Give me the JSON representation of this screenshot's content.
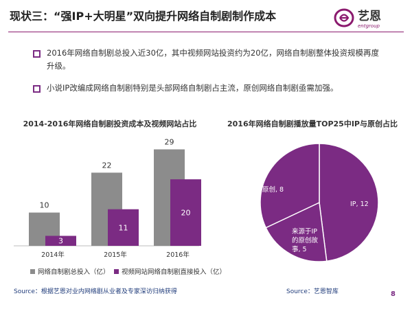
{
  "title": "现状三：“强IP+大明星”双向提升网络自制剧制作成本",
  "logo": {
    "brand_cn": "艺恩",
    "brand_en": "entgroup",
    "color": "#8b1a6e"
  },
  "bullets": [
    "2016年网络自制剧总投入近30亿，其中视频网站投资约为20亿，网络自制剧整体投资规模再度升级。",
    "小说IP改编成网络自制剧特别是头部网络自制剧占主流，原创网络自制剧亟需加强。"
  ],
  "source_left": "Source：根据艺恩对业内网络剧从业者及专家深访归纳获得",
  "source_right": "Source：艺恩智库",
  "page_number": "8",
  "colors": {
    "accent": "#7b2b83",
    "gray": "#8c8c8c",
    "pie": "#7b2b83"
  },
  "chart_data": [
    {
      "type": "bar",
      "title": "2014-2016年网络自制剧投资成本及视频网站占比",
      "categories": [
        "2014年",
        "2015年",
        "2016年"
      ],
      "series": [
        {
          "name": "网络自制剧总投入（亿）",
          "values": [
            10,
            22,
            29
          ],
          "color": "#8c8c8c"
        },
        {
          "name": "视频网站网络自制剧直接投入（亿）",
          "values": [
            3,
            11,
            20
          ],
          "color": "#7b2b83"
        }
      ],
      "ylim": [
        0,
        32
      ],
      "legend": "bottom"
    },
    {
      "type": "pie",
      "title": "2016年网络自制剧播放量TOP25中IP与原创占比",
      "slices": [
        {
          "label": "IP",
          "value": 12,
          "display": "IP, 12"
        },
        {
          "label": "原创",
          "value": 8,
          "display": "原创, 8"
        },
        {
          "label": "来源于IP的原创故事",
          "value": 5,
          "display": "来源于IP的原创故事, 5",
          "lines": [
            "来源于IP",
            "的原创故",
            "事, 5"
          ]
        }
      ],
      "color": "#7b2b83"
    }
  ]
}
